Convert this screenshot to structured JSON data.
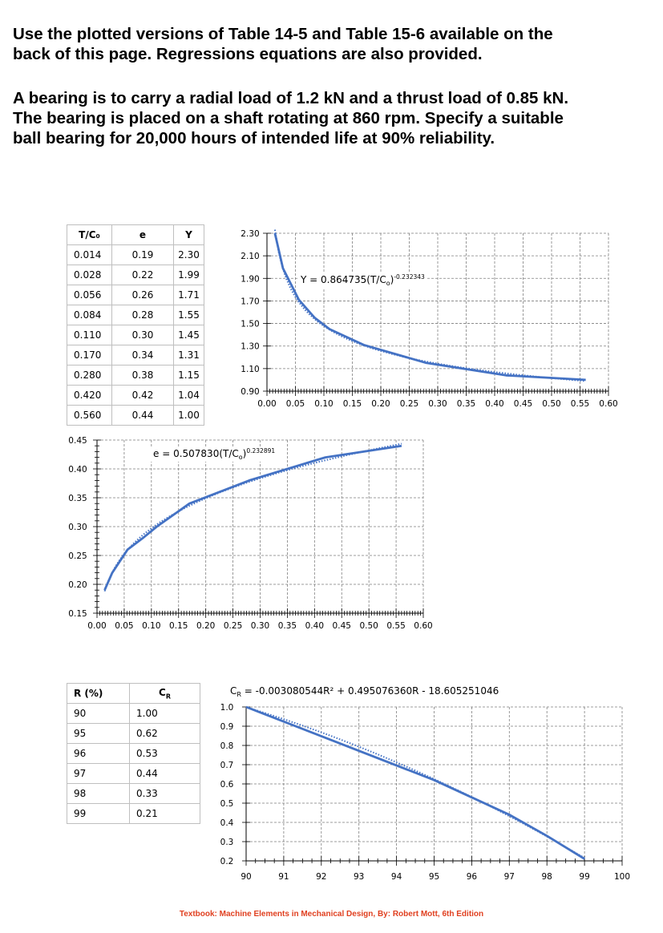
{
  "intro": {
    "line1": "Use the plotted versions of Table 14-5 and Table 15-6 available on the",
    "line2": "back of this page. Regressions equations are also provided."
  },
  "problem": {
    "line1": "A bearing is to carry a radial load of 1.2 kN and a thrust load of 0.85 kN.",
    "line2": "The bearing is placed on a shaft rotating at 860 rpm. Specify a suitable",
    "line3": "ball bearing for 20,000 hours of intended life at 90% reliability."
  },
  "table1": {
    "headers": [
      "T/C₀",
      "e",
      "Y"
    ],
    "rows": [
      [
        "0.014",
        "0.19",
        "2.30"
      ],
      [
        "0.028",
        "0.22",
        "1.99"
      ],
      [
        "0.056",
        "0.26",
        "1.71"
      ],
      [
        "0.084",
        "0.28",
        "1.55"
      ],
      [
        "0.110",
        "0.30",
        "1.45"
      ],
      [
        "0.170",
        "0.34",
        "1.31"
      ],
      [
        "0.280",
        "0.38",
        "1.15"
      ],
      [
        "0.420",
        "0.42",
        "1.04"
      ],
      [
        "0.560",
        "0.44",
        "1.00"
      ]
    ]
  },
  "table2": {
    "headers": [
      "R (%)",
      "C_R"
    ],
    "rows": [
      [
        "90",
        "1.00"
      ],
      [
        "95",
        "0.62"
      ],
      [
        "96",
        "0.53"
      ],
      [
        "97",
        "0.44"
      ],
      [
        "98",
        "0.33"
      ],
      [
        "99",
        "0.21"
      ]
    ]
  },
  "footer": "Textbook: Machine Elements in Mechanical Design, By: Robert Mott, 6th Edition",
  "colors": {
    "line": "#4472c4",
    "grid": "#7f7f7f",
    "footer": "#e04020"
  },
  "chart_data": [
    {
      "id": "y-chart",
      "type": "line",
      "equation": {
        "prefix": "Y = 0.864735(T/C",
        "sub": "o",
        "close": ")",
        "exp": "-0.232343"
      },
      "x": [
        0.014,
        0.028,
        0.056,
        0.084,
        0.11,
        0.17,
        0.28,
        0.42,
        0.56
      ],
      "y": [
        2.3,
        1.99,
        1.71,
        1.55,
        1.45,
        1.31,
        1.15,
        1.04,
        1.0
      ],
      "trendline": {
        "a": 0.864735,
        "b": -0.232343,
        "style": "dotted"
      },
      "xlim": [
        0,
        0.6
      ],
      "ylim": [
        0.9,
        2.3
      ],
      "xticks": [
        "0.00",
        "0.05",
        "0.10",
        "0.15",
        "0.20",
        "0.25",
        "0.30",
        "0.35",
        "0.40",
        "0.45",
        "0.50",
        "0.55",
        "0.60"
      ],
      "yticks": [
        "0.90",
        "1.10",
        "1.30",
        "1.50",
        "1.70",
        "1.90",
        "2.10",
        "2.30"
      ],
      "grid": true
    },
    {
      "id": "e-chart",
      "type": "line",
      "equation": {
        "prefix": "e = 0.507830(T/C",
        "sub": "o",
        "close": ")",
        "exp": "0.232891"
      },
      "x": [
        0.014,
        0.028,
        0.056,
        0.084,
        0.11,
        0.17,
        0.28,
        0.42,
        0.56
      ],
      "y": [
        0.19,
        0.22,
        0.26,
        0.28,
        0.3,
        0.34,
        0.38,
        0.42,
        0.44
      ],
      "trendline": {
        "a": 0.50783,
        "b": 0.232891,
        "style": "dotted"
      },
      "xlim": [
        0,
        0.6
      ],
      "ylim": [
        0.15,
        0.45
      ],
      "xticks": [
        "0.00",
        "0.05",
        "0.10",
        "0.15",
        "0.20",
        "0.25",
        "0.30",
        "0.35",
        "0.40",
        "0.45",
        "0.50",
        "0.55",
        "0.60"
      ],
      "yticks": [
        "0.15",
        "0.20",
        "0.25",
        "0.30",
        "0.35",
        "0.40",
        "0.45"
      ],
      "grid": true
    },
    {
      "id": "cr-chart",
      "type": "line",
      "equation": {
        "prefix": "C",
        "sub": "R",
        "rest": " = -0.003080544R² + 0.495076360R - 18.605251046"
      },
      "x": [
        90,
        95,
        96,
        97,
        98,
        99
      ],
      "y": [
        1.0,
        0.62,
        0.53,
        0.44,
        0.33,
        0.21
      ],
      "trendline": {
        "c2": -0.003080544,
        "c1": 0.49507636,
        "c0": -18.605251046,
        "style": "dotted"
      },
      "xlim": [
        90,
        100
      ],
      "ylim": [
        0.2,
        1.0
      ],
      "xticks": [
        "90",
        "91",
        "92",
        "93",
        "94",
        "95",
        "96",
        "97",
        "98",
        "99",
        "100"
      ],
      "yticks": [
        "0.2",
        "0.3",
        "0.4",
        "0.5",
        "0.6",
        "0.7",
        "0.8",
        "0.9",
        "1.0"
      ],
      "grid": true
    }
  ]
}
